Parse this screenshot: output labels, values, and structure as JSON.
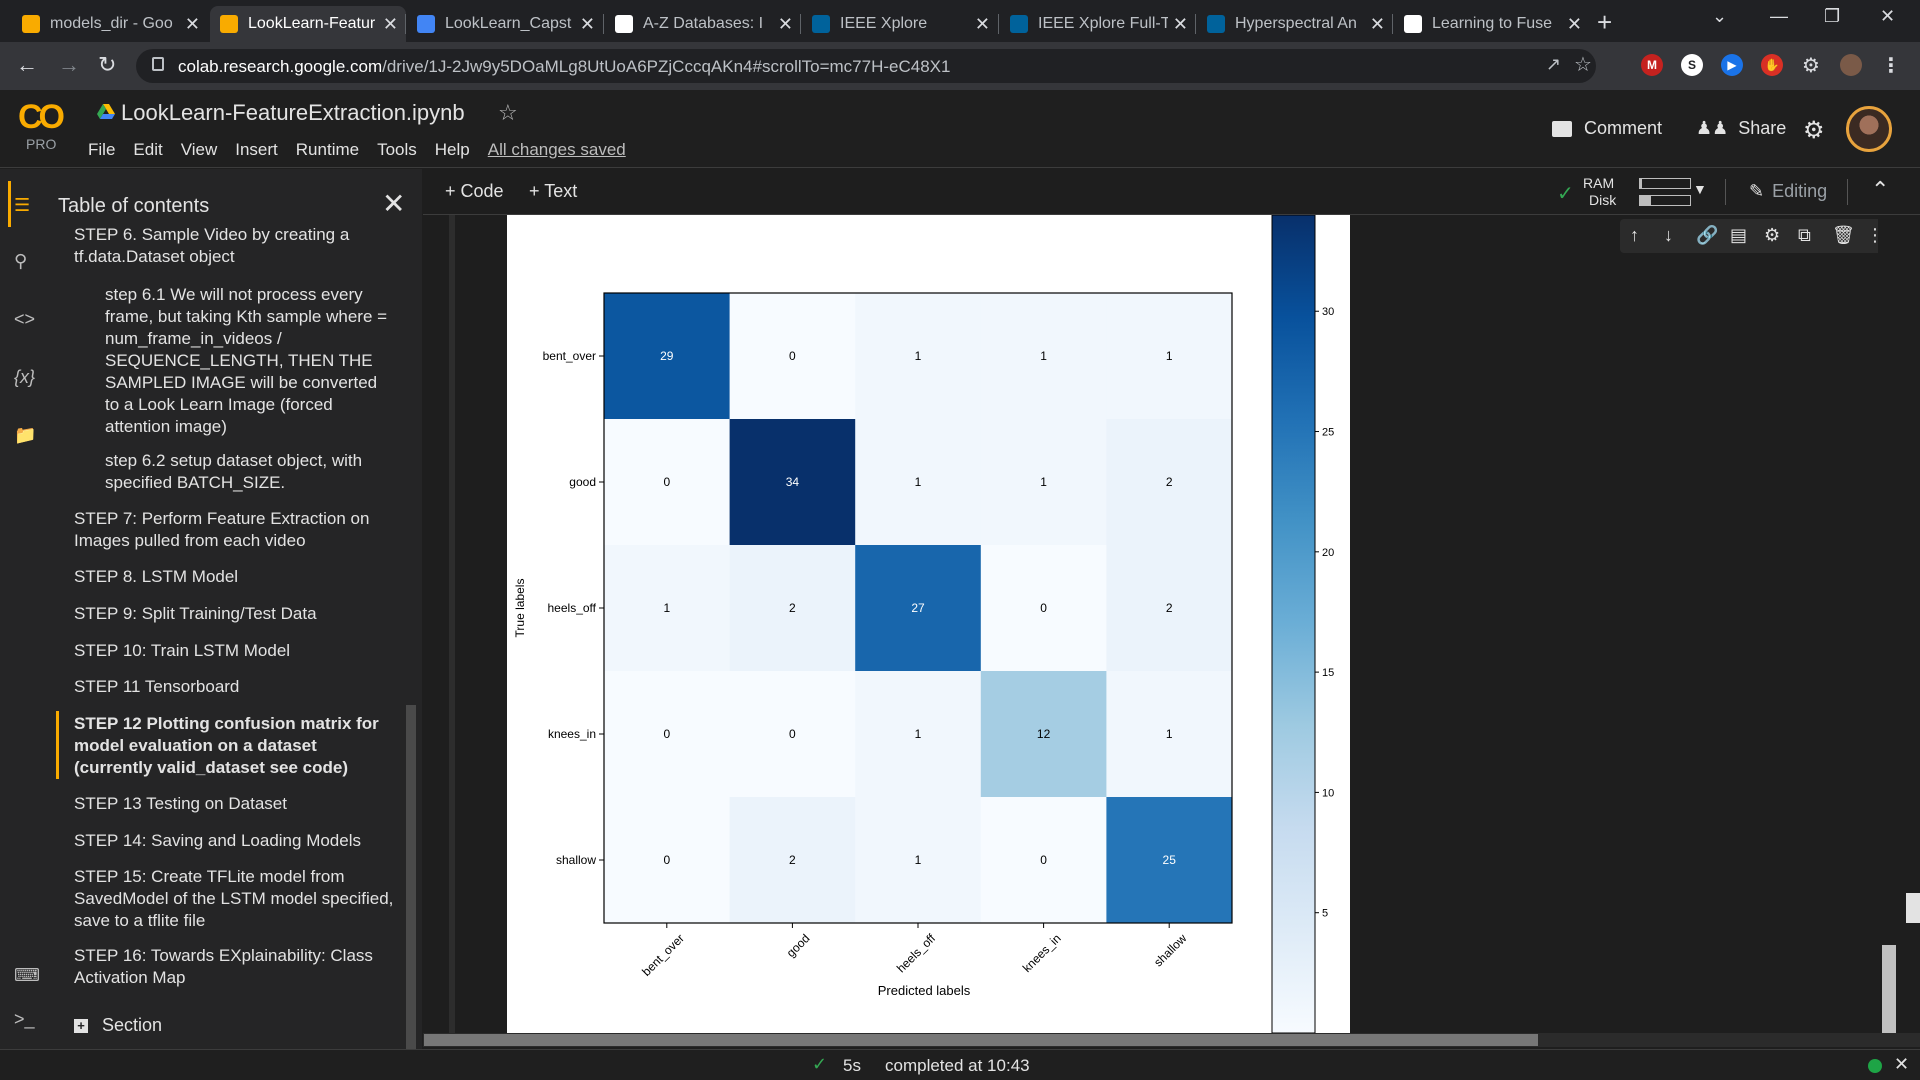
{
  "browser": {
    "tabs": [
      {
        "title": "models_dir - Goo",
        "icon": "google-drive-icon",
        "color": "#f9ab00"
      },
      {
        "title": "LookLearn-Featur",
        "icon": "colab-icon",
        "color": "#f9ab00",
        "active": true
      },
      {
        "title": "LookLearn_Capst",
        "icon": "google-docs-icon",
        "color": "#4285f4"
      },
      {
        "title": "A-Z Databases: I",
        "icon": "eb-icon",
        "color": "#ffffff"
      },
      {
        "title": "IEEE Xplore",
        "icon": "ieee-icon",
        "color": "#00629b"
      },
      {
        "title": "IEEE Xplore Full-T",
        "icon": "ieee-icon",
        "color": "#00629b"
      },
      {
        "title": "Hyperspectral An",
        "icon": "ieee-icon",
        "color": "#00629b"
      },
      {
        "title": "Learning to Fuse",
        "icon": "openai-icon",
        "color": "#ffffff"
      }
    ],
    "url_domain": "colab.research.google.com",
    "url_path": "/drive/1J-2Jw9y5DOaMLg8UtUoA6PZjCccqAKn4#scrollTo=mc77H-eC48X1"
  },
  "colab": {
    "logo": "CO",
    "pro": "PRO",
    "notebook_title": "LookLearn-FeatureExtraction.ipynb",
    "menu": [
      "File",
      "Edit",
      "View",
      "Insert",
      "Runtime",
      "Tools",
      "Help"
    ],
    "saved_status": "All changes saved",
    "comment": "Comment",
    "share": "Share",
    "toolbar": {
      "add_code": "+ Code",
      "add_text": "+ Text",
      "ram": "RAM",
      "disk": "Disk",
      "ram_level": 0.04,
      "disk_level": 0.22,
      "editing": "Editing"
    }
  },
  "toc": {
    "title": "Table of contents",
    "items": [
      {
        "text": "STEP 6. Sample Video by creating a tf.data.Dataset object",
        "level": 1
      },
      {
        "text": "step 6.1 We will not process every frame, but taking Kth sample where = num_frame_in_videos / SEQUENCE_LENGTH, THEN THE SAMPLED IMAGE will be converted to a Look Learn Image (forced attention image)",
        "level": 2
      },
      {
        "text": "step 6.2 setup dataset object, with specified BATCH_SIZE.",
        "level": 2
      },
      {
        "text": "STEP 7: Perform Feature Extraction on Images pulled from each video",
        "level": 1
      },
      {
        "text": "STEP 8. LSTM Model",
        "level": 1
      },
      {
        "text": "STEP 9: Split Training/Test Data",
        "level": 1
      },
      {
        "text": "STEP 10: Train LSTM Model",
        "level": 1
      },
      {
        "text": "STEP 11 Tensorboard",
        "level": 1
      },
      {
        "text": "STEP 12 Plotting confusion matrix for model evaluation on a dataset (currently valid_dataset see code)",
        "level": 1,
        "active": true
      },
      {
        "text": "STEP 13 Testing on Dataset",
        "level": 1
      },
      {
        "text": "STEP 14: Saving and Loading Models",
        "level": 1
      },
      {
        "text": "STEP 15: Create TFLite model from SavedModel of the LSTM model specified, save to a tflite file",
        "level": 1
      },
      {
        "text": "STEP 16: Towards EXplainability: Class Activation Map",
        "level": 1
      }
    ],
    "section_button": "Section"
  },
  "chart_data": {
    "type": "heatmap",
    "xlabel": "Predicted labels",
    "ylabel": "True labels",
    "x_categories": [
      "bent_over",
      "good",
      "heels_off",
      "knees_in",
      "shallow"
    ],
    "y_categories": [
      "bent_over",
      "good",
      "heels_off",
      "knees_in",
      "shallow"
    ],
    "values": [
      [
        29,
        0,
        1,
        1,
        1
      ],
      [
        0,
        34,
        1,
        1,
        2
      ],
      [
        1,
        2,
        27,
        0,
        2
      ],
      [
        0,
        0,
        1,
        12,
        1
      ],
      [
        0,
        2,
        1,
        0,
        25
      ]
    ],
    "colormap": "Blues",
    "colorbar_ticks": [
      5,
      10,
      15,
      20,
      25,
      30
    ],
    "colorbar_range": [
      0,
      34
    ]
  },
  "status": {
    "duration": "5s",
    "completed": "completed at 10:43"
  }
}
